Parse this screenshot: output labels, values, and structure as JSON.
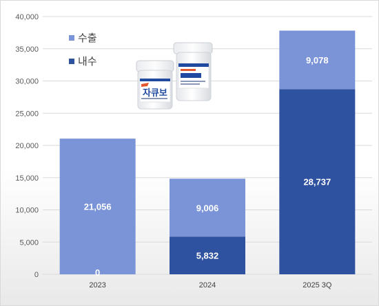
{
  "chart_data": {
    "type": "bar",
    "stacked": true,
    "categories": [
      "2023",
      "2024",
      "2025 3Q"
    ],
    "series": [
      {
        "name": "내수",
        "values": [
          0,
          5832,
          28737
        ],
        "labels": [
          "0",
          "5,832",
          "28,737"
        ],
        "color": "#2f52a0"
      },
      {
        "name": "수출",
        "values": [
          21056,
          9006,
          9078
        ],
        "labels": [
          "21,056",
          "9,006",
          "9,078"
        ],
        "color": "#7b94d8"
      }
    ],
    "ylim": [
      0,
      40000
    ],
    "yticks": [
      0,
      5000,
      10000,
      15000,
      20000,
      25000,
      30000,
      35000,
      40000
    ],
    "ytick_labels": [
      "0",
      "5,000",
      "10,000",
      "15,000",
      "20,000",
      "25,000",
      "30,000",
      "35,000",
      "40,000"
    ],
    "grid": true,
    "legend": {
      "position": "top-left",
      "order": [
        "수출",
        "내수"
      ]
    },
    "product_image": {
      "text": "자큐보"
    }
  }
}
